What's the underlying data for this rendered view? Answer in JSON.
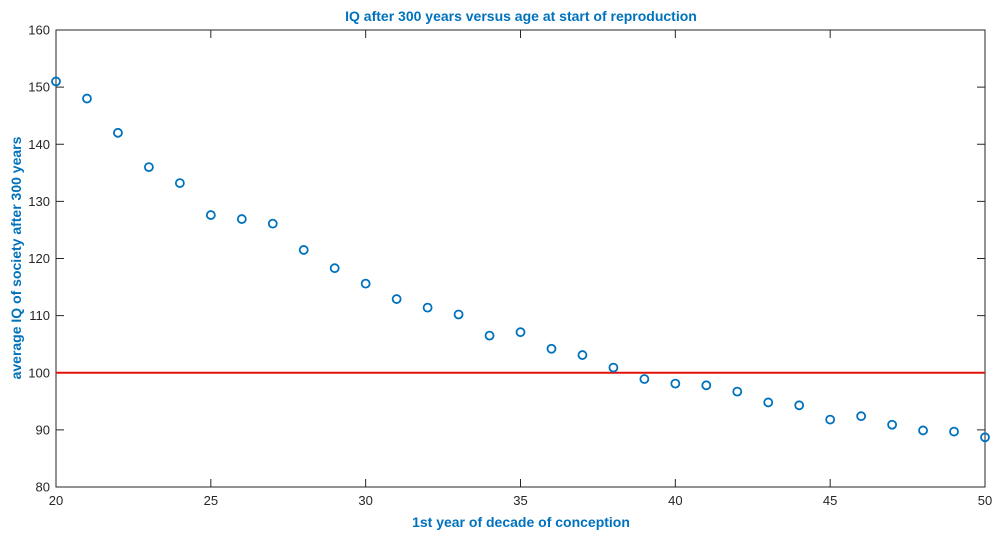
{
  "chart_data": {
    "type": "scatter",
    "title": "IQ after 300 years versus age at start of reproduction",
    "xlabel": "1st year of decade of conception",
    "ylabel": "average IQ of society after 300 years",
    "xlim": [
      20,
      50
    ],
    "ylim": [
      80,
      160
    ],
    "xticks": [
      20,
      25,
      30,
      35,
      40,
      45,
      50
    ],
    "yticks": [
      80,
      90,
      100,
      110,
      120,
      130,
      140,
      150,
      160
    ],
    "grid": false,
    "marker": "open-circle",
    "colors": {
      "points": "#0072BD",
      "reference_line": "#E3120B",
      "title": "#0072BD",
      "axes": "#262626"
    },
    "series": [
      {
        "x": [
          20,
          21,
          22,
          23,
          24,
          25,
          26,
          27,
          28,
          29,
          30,
          31,
          32,
          33,
          34,
          35,
          36,
          37,
          38,
          39,
          40,
          41,
          42,
          43,
          44,
          45,
          46,
          47,
          48,
          49,
          50
        ],
        "y": [
          151,
          148,
          142,
          136,
          133.2,
          127.6,
          126.9,
          126.1,
          121.5,
          118.3,
          115.6,
          112.9,
          111.4,
          110.2,
          106.5,
          107.1,
          104.2,
          103.1,
          100.9,
          98.9,
          98.1,
          97.8,
          96.7,
          94.8,
          94.3,
          91.8,
          92.4,
          90.9,
          89.9,
          89.7,
          88.7
        ]
      }
    ],
    "reference_lines": [
      {
        "y": 100
      }
    ]
  }
}
